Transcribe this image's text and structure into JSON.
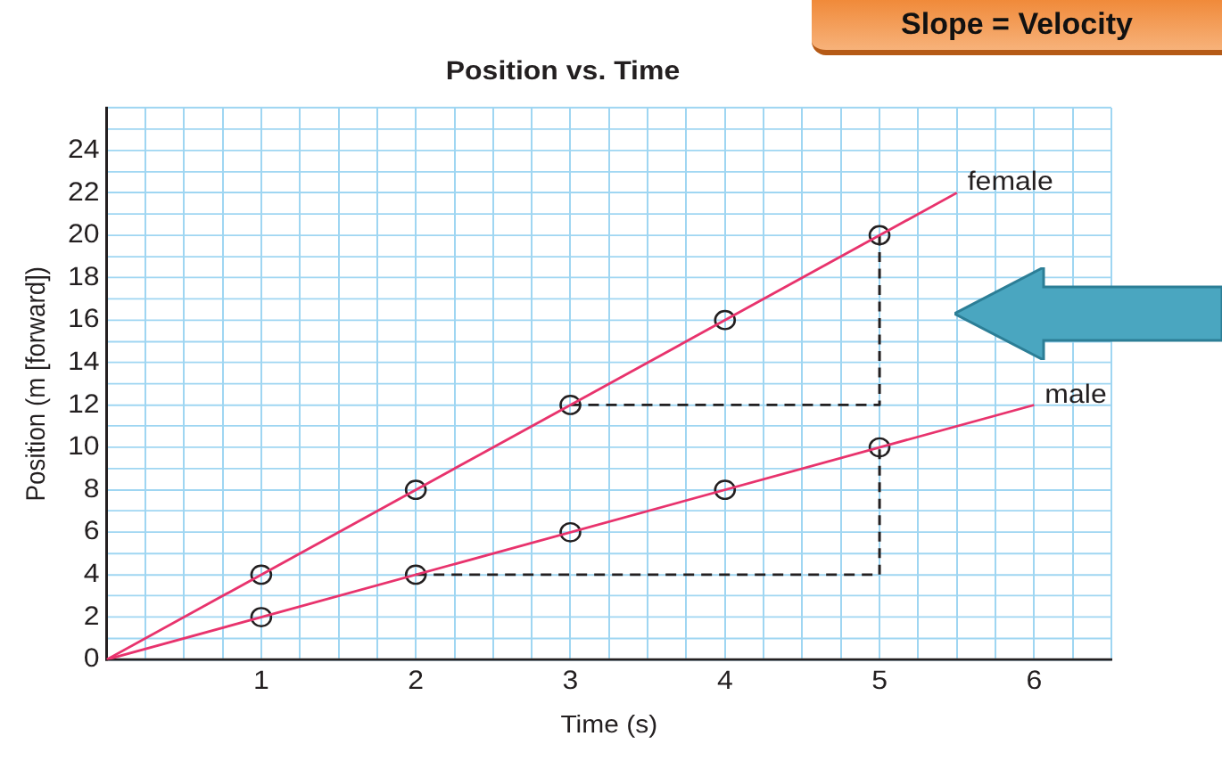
{
  "chart_data": {
    "type": "line",
    "title": "Position vs. Time",
    "xlabel": "Time (s)",
    "ylabel": "Position (m [forward])",
    "annotations": [
      "Slope = Velocity"
    ],
    "xlim": [
      0,
      6.5
    ],
    "ylim": [
      0,
      26
    ],
    "xticks": [
      {
        "value": 0,
        "label": null
      },
      {
        "value": 0.25,
        "label": null
      },
      {
        "value": 0.5,
        "label": null
      },
      {
        "value": 0.75,
        "label": null
      },
      1,
      {
        "value": 1.25,
        "label": null
      },
      {
        "value": 1.5,
        "label": null
      },
      {
        "value": 1.75,
        "label": null
      },
      2,
      {
        "value": 2.25,
        "label": null
      },
      {
        "value": 2.5,
        "label": null
      },
      {
        "value": 2.75,
        "label": null
      },
      3,
      {
        "value": 3.25,
        "label": null
      },
      {
        "value": 3.5,
        "label": null
      },
      {
        "value": 3.75,
        "label": null
      },
      4,
      {
        "value": 4.25,
        "label": null
      },
      {
        "value": 4.5,
        "label": null
      },
      {
        "value": 4.75,
        "label": null
      },
      5,
      {
        "value": 5.25,
        "label": null
      },
      {
        "value": 5.5,
        "label": null
      },
      {
        "value": 5.75,
        "label": null
      },
      6,
      {
        "value": 6.25,
        "label": null
      },
      {
        "value": 6.5,
        "label": null
      }
    ],
    "yticks": [
      0,
      {
        "value": 1,
        "label": null
      },
      2,
      {
        "value": 3,
        "label": null
      },
      4,
      {
        "value": 5,
        "label": null
      },
      6,
      {
        "value": 7,
        "label": null
      },
      8,
      {
        "value": 9,
        "label": null
      },
      10,
      {
        "value": 11,
        "label": null
      },
      12,
      {
        "value": 13,
        "label": null
      },
      14,
      {
        "value": 15,
        "label": null
      },
      16,
      {
        "value": 17,
        "label": null
      },
      18,
      {
        "value": 19,
        "label": null
      },
      20,
      {
        "value": 21,
        "label": null
      },
      22,
      {
        "value": 23,
        "label": null
      },
      24,
      {
        "value": 25,
        "label": null
      },
      {
        "value": 26,
        "label": null
      }
    ],
    "grid": true,
    "legend": false,
    "series": [
      {
        "name": "female",
        "type": "line",
        "color": "#e8336d",
        "marker": "none",
        "x": [
          0,
          5.5
        ],
        "values": [
          0,
          22
        ]
      },
      {
        "type": "scatter",
        "color": "#231f20",
        "marker": "circle",
        "x": [
          1,
          2,
          3,
          4,
          5
        ],
        "values": [
          4,
          8,
          12,
          16,
          20
        ]
      },
      {
        "name": "male",
        "type": "line",
        "color": "#e8336d",
        "marker": "none",
        "x": [
          0,
          6
        ],
        "values": [
          0,
          12
        ]
      },
      {
        "type": "scatter",
        "color": "#231f20",
        "marker": "circle",
        "x": [
          1,
          2,
          3,
          4,
          5
        ],
        "values": [
          2,
          4,
          6,
          8,
          10
        ]
      },
      {
        "type": "line",
        "color": "#231f20",
        "line_style": "dashed",
        "marker": "none",
        "x": [
          3,
          5,
          5
        ],
        "values": [
          12,
          12,
          20
        ]
      },
      {
        "type": "line",
        "color": "#231f20",
        "line_style": "dashed",
        "marker": "none",
        "x": [
          2,
          5,
          5
        ],
        "values": [
          4,
          4,
          10
        ]
      }
    ]
  }
}
